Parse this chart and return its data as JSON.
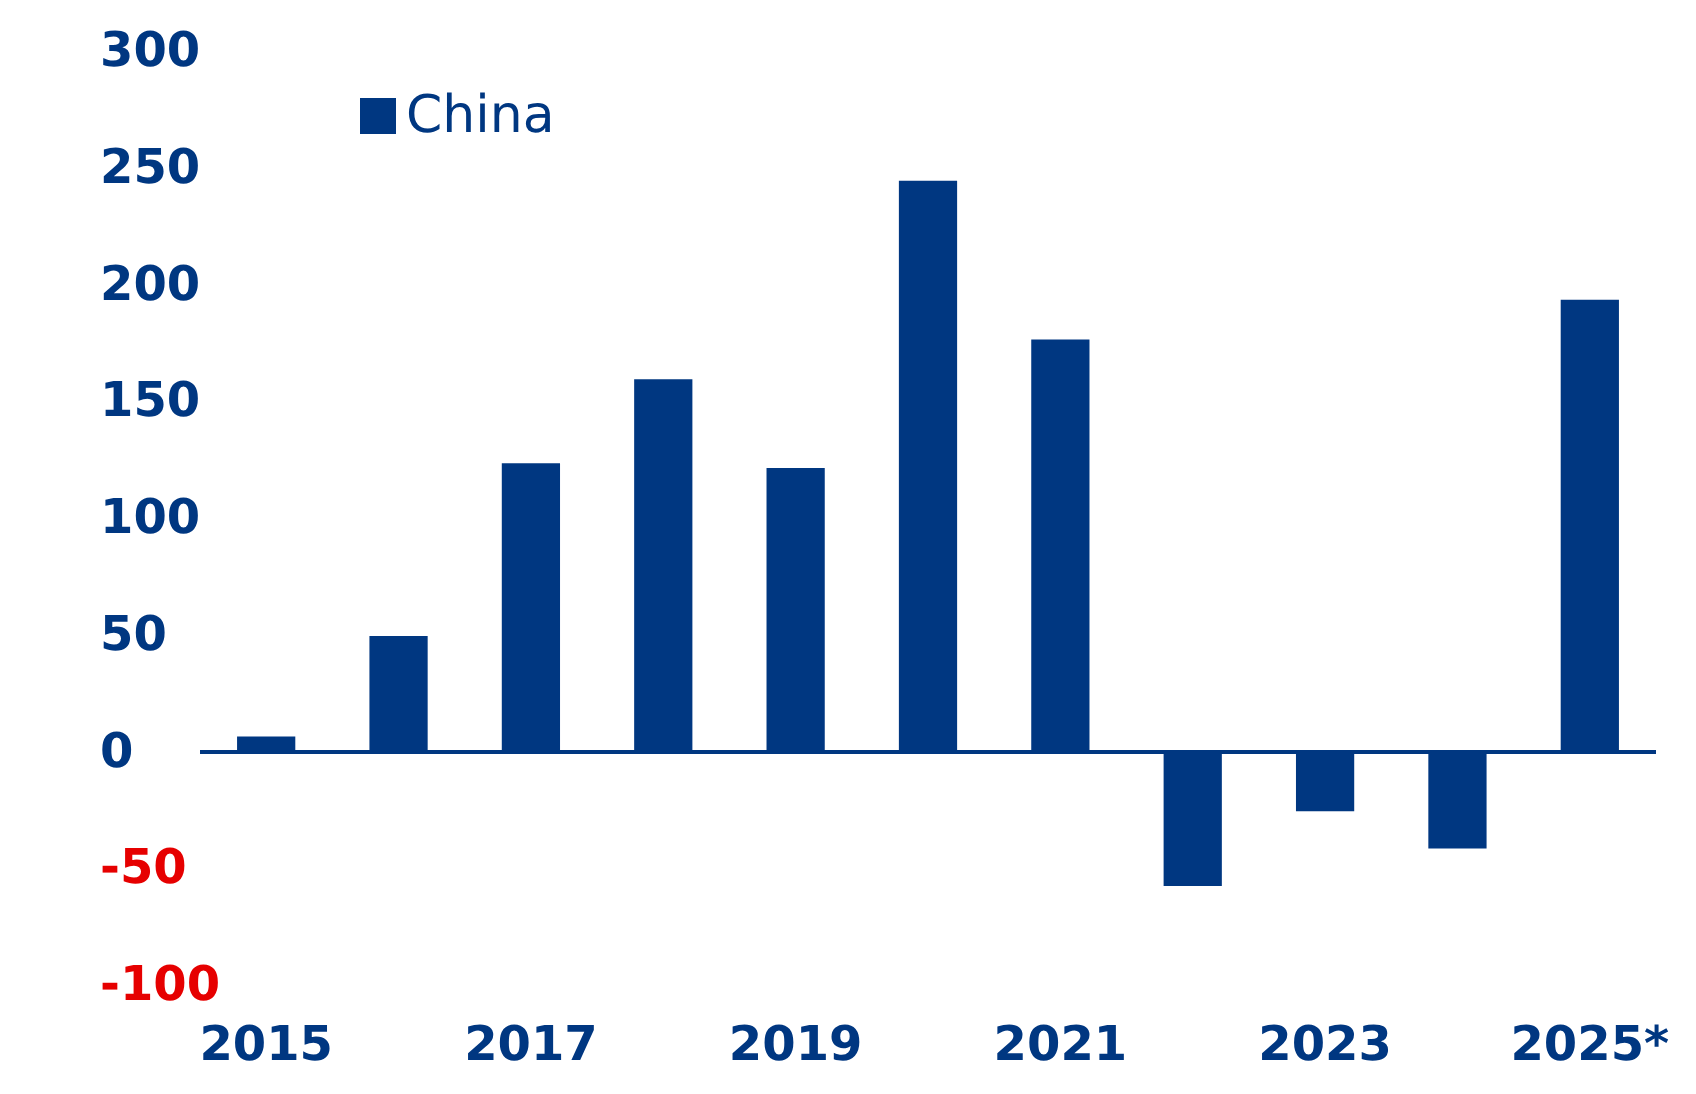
{
  "chart_data": {
    "type": "bar",
    "categories": [
      "2015",
      null,
      "2017",
      null,
      "2019",
      null,
      "2021",
      null,
      "2023",
      null,
      "2025*"
    ],
    "series": [
      {
        "name": "China",
        "color": "#003781",
        "values": [
          6,
          49,
          123,
          159,
          121,
          244,
          176,
          -58,
          -26,
          -42,
          193
        ]
      }
    ],
    "ylim": [
      -100,
      300
    ],
    "yticks": [
      -100,
      -50,
      0,
      50,
      100,
      150,
      200,
      250,
      300
    ],
    "ref_lines": [
      {
        "axis": "y",
        "value": 0,
        "color": "#003781"
      }
    ],
    "grid": false,
    "legend": "top left"
  }
}
